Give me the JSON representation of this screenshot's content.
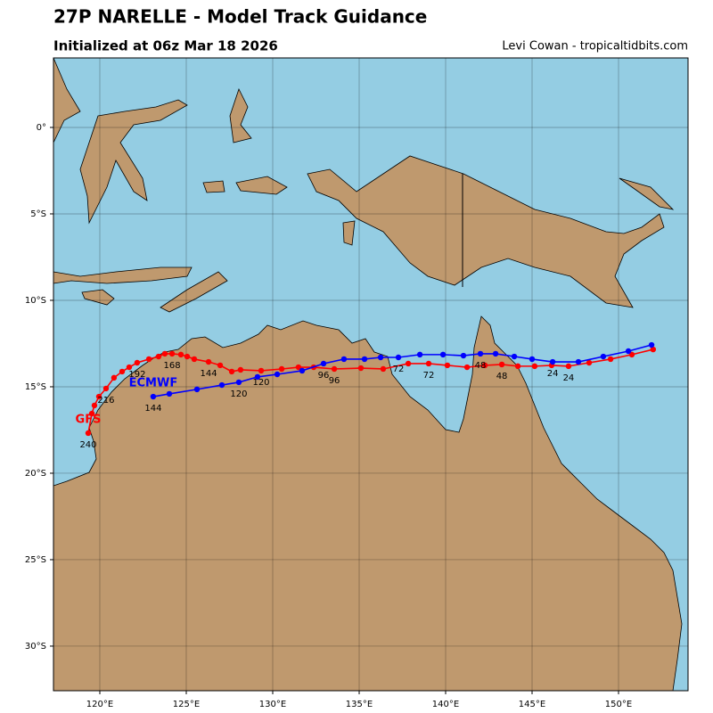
{
  "chart_data": {
    "type": "track-map",
    "title": "27P NARELLE - Model Track Guidance",
    "subtitle": "Initialized at 06z Mar 18 2026",
    "credit": "Levi Cowan - tropicaltidbits.com",
    "xlim": [
      117.32,
      154.02
    ],
    "ylim": [
      -32.58,
      4.02
    ],
    "xticks": [
      {
        "value": 120,
        "label": "120°E"
      },
      {
        "value": 125,
        "label": "125°E"
      },
      {
        "value": 130,
        "label": "130°E"
      },
      {
        "value": 135,
        "label": "135°E"
      },
      {
        "value": 140,
        "label": "140°E"
      },
      {
        "value": 145,
        "label": "145°E"
      },
      {
        "value": 150,
        "label": "150°E"
      }
    ],
    "yticks": [
      {
        "value": 0,
        "label": "0°"
      },
      {
        "value": -5,
        "label": "5°S"
      },
      {
        "value": -10,
        "label": "10°S"
      },
      {
        "value": -15,
        "label": "15°S"
      },
      {
        "value": -20,
        "label": "20°S"
      },
      {
        "value": -25,
        "label": "25°S"
      },
      {
        "value": -30,
        "label": "30°S"
      }
    ],
    "grid": true,
    "series": [
      {
        "name": "GFS",
        "color": "#ff0000",
        "x": [
          152.0,
          150.77,
          149.54,
          148.3,
          147.11,
          146.13,
          145.15,
          144.18,
          143.25,
          142.27,
          141.24,
          140.1,
          139.02,
          137.84,
          136.39,
          135.1,
          133.56,
          132.37,
          131.49,
          130.52,
          129.33,
          128.14,
          127.63,
          126.96,
          126.29,
          125.46,
          125.05,
          124.69,
          124.18,
          123.76,
          123.4,
          122.84,
          122.16,
          121.7,
          121.29,
          120.82,
          120.36,
          119.95,
          119.69,
          119.54,
          119.33
        ],
        "values": [
          -12.84,
          -13.14,
          -13.4,
          -13.61,
          -13.81,
          -13.76,
          -13.81,
          -13.81,
          -13.71,
          -13.76,
          -13.87,
          -13.76,
          -13.66,
          -13.66,
          -13.97,
          -13.92,
          -13.97,
          -13.87,
          -13.87,
          -13.97,
          -14.07,
          -14.02,
          -14.12,
          -13.76,
          -13.56,
          -13.4,
          -13.25,
          -13.14,
          -13.09,
          -13.09,
          -13.25,
          -13.4,
          -13.61,
          -13.87,
          -14.12,
          -14.48,
          -15.1,
          -15.57,
          -16.08,
          -16.55,
          -17.68
        ],
        "point_labels": [
          null,
          null,
          null,
          null,
          "24",
          null,
          null,
          null,
          "48",
          null,
          null,
          null,
          "72",
          null,
          null,
          null,
          "96",
          null,
          null,
          null,
          "120",
          null,
          null,
          null,
          "144",
          null,
          null,
          null,
          "168",
          null,
          null,
          null,
          "192",
          null,
          null,
          null,
          "216",
          null,
          null,
          null,
          "240"
        ]
      },
      {
        "name": "ECMWF",
        "color": "#0000ff",
        "x": [
          151.91,
          150.57,
          149.12,
          147.68,
          146.19,
          145.0,
          143.97,
          142.89,
          142.01,
          141.03,
          139.85,
          138.51,
          137.27,
          136.24,
          135.31,
          134.12,
          132.94,
          131.7,
          130.26,
          129.12,
          128.04,
          127.06,
          125.62,
          124.02,
          123.09
        ],
        "values": [
          -12.58,
          -12.94,
          -13.25,
          -13.56,
          -13.56,
          -13.4,
          -13.25,
          -13.09,
          -13.09,
          -13.2,
          -13.14,
          -13.14,
          -13.3,
          -13.3,
          -13.4,
          -13.4,
          -13.66,
          -14.07,
          -14.28,
          -14.43,
          -14.74,
          -14.9,
          -15.15,
          -15.41,
          -15.57
        ],
        "point_labels": [
          null,
          null,
          null,
          null,
          "24",
          null,
          null,
          null,
          "48",
          null,
          null,
          null,
          "72",
          null,
          null,
          null,
          "96",
          null,
          null,
          null,
          "120",
          null,
          null,
          null,
          "144"
        ]
      }
    ]
  }
}
